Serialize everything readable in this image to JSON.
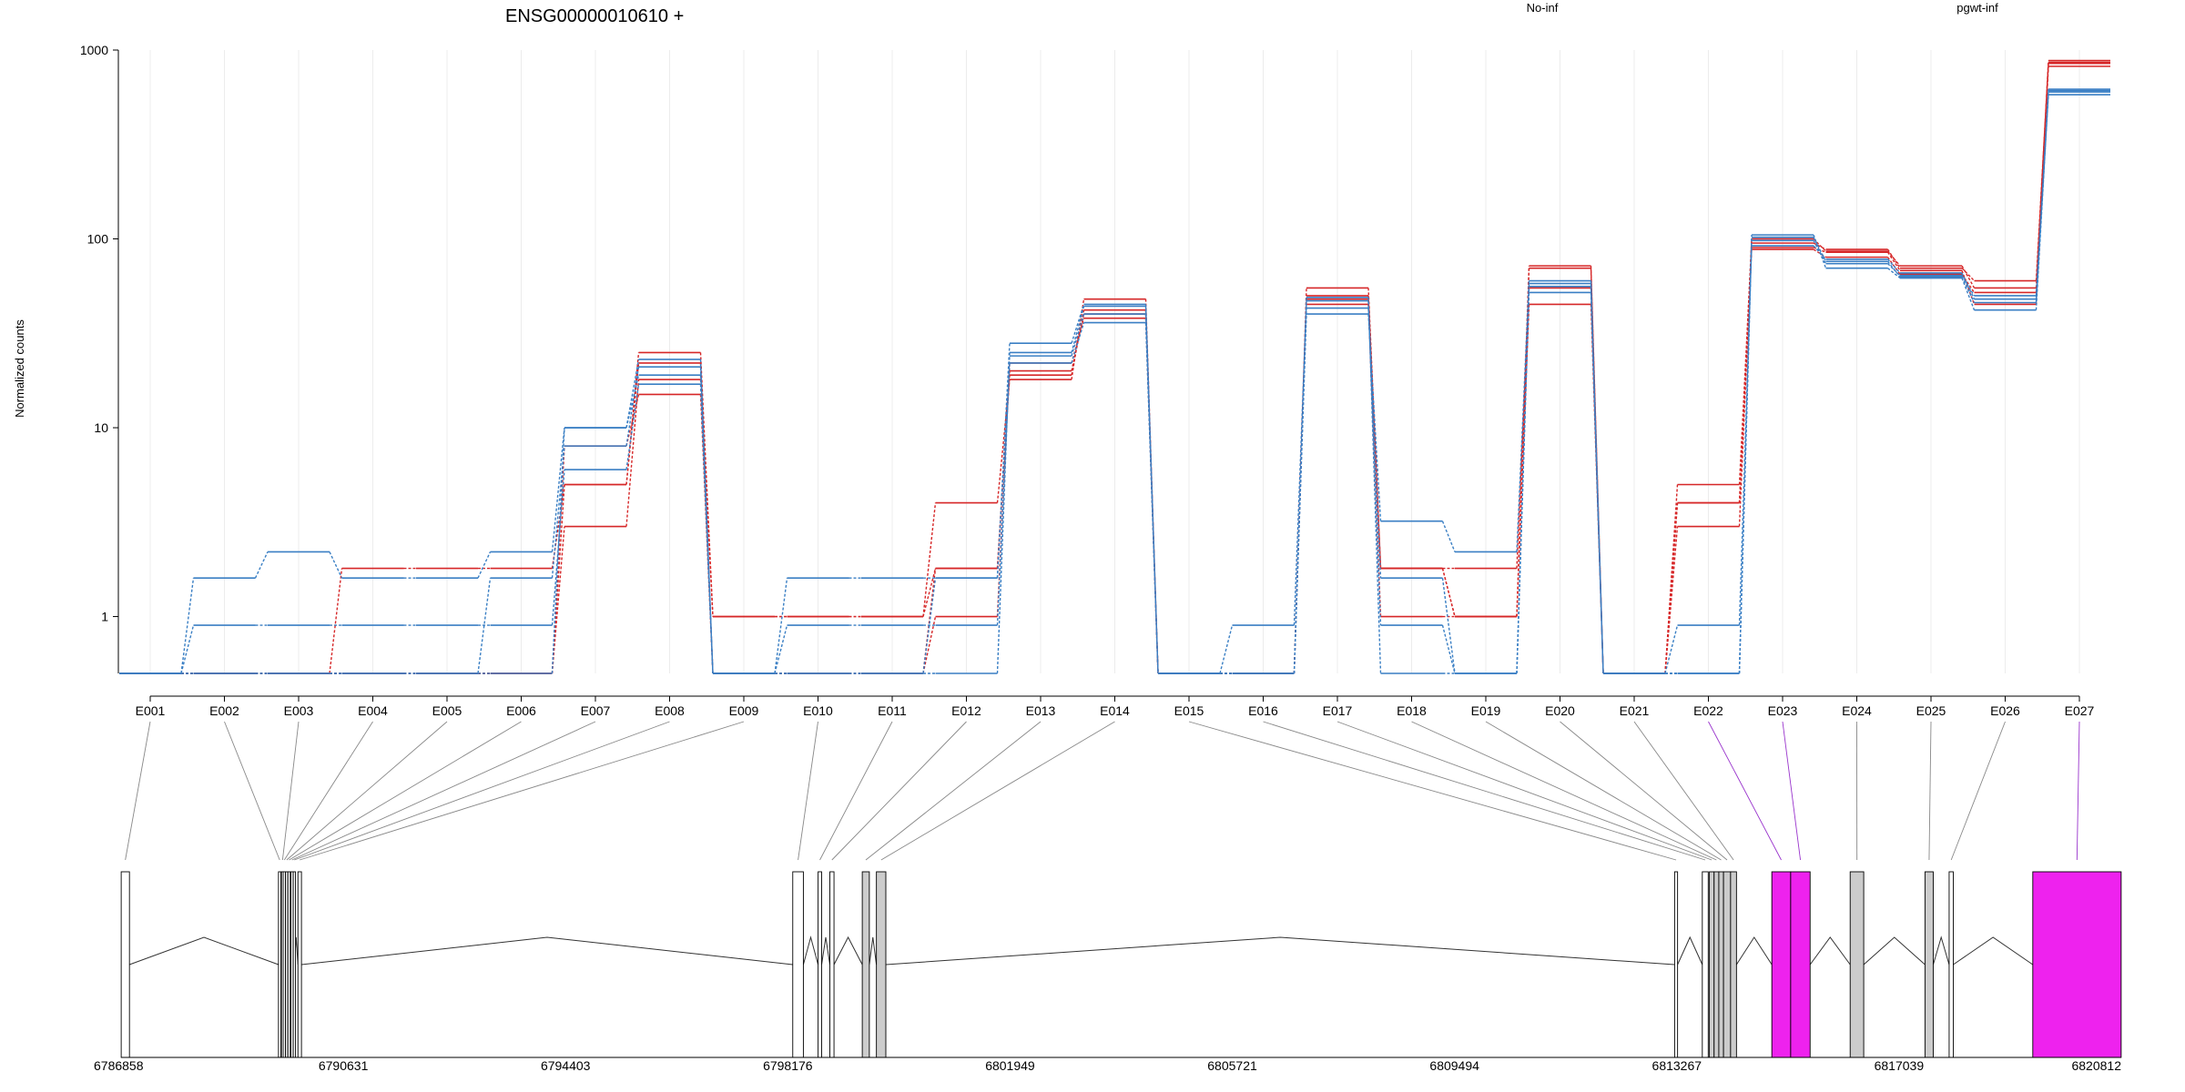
{
  "chart_data": {
    "type": "line",
    "title": "ENSG00000010610 +",
    "ylabel": "Normalized counts",
    "xlabel": "",
    "yscale": "log",
    "yticks": [
      "1",
      "10",
      "100",
      "1000"
    ],
    "ytick_values": [
      1,
      10,
      100,
      1000
    ],
    "ylim": [
      0.5,
      1000
    ],
    "grid": "vertical light lines at each exon",
    "legend": [
      {
        "name": "No-inf",
        "color": "#d62728",
        "position": "top-center"
      },
      {
        "name": "pgwt-inf",
        "color": "#3a7fc4",
        "position": "top-right"
      }
    ],
    "categories": [
      "E001",
      "E002",
      "E003",
      "E004",
      "E005",
      "E006",
      "E007",
      "E008",
      "E009",
      "E010",
      "E011",
      "E012",
      "E013",
      "E014",
      "E015",
      "E016",
      "E017",
      "E018",
      "E019",
      "E020",
      "E021",
      "E022",
      "E023",
      "E024",
      "E025",
      "E026",
      "E027"
    ],
    "series": [
      {
        "group": "No-inf",
        "color": "#d62728",
        "values": [
          0.5,
          0.5,
          0.5,
          1.8,
          1.8,
          1.8,
          5.0,
          25,
          1.0,
          1.0,
          1.0,
          4.0,
          18,
          48,
          0.5,
          0.5,
          55,
          1.8,
          1.0,
          72,
          0.5,
          5.0,
          95,
          88,
          70,
          60,
          850
        ]
      },
      {
        "group": "No-inf",
        "color": "#d62728",
        "values": [
          0.5,
          0.5,
          0.5,
          0.5,
          0.5,
          0.5,
          3.0,
          18,
          1.0,
          1.0,
          1.0,
          1.8,
          20,
          40,
          0.5,
          0.5,
          45,
          1.0,
          1.0,
          45,
          0.5,
          3.0,
          90,
          85,
          68,
          45,
          820
        ]
      },
      {
        "group": "No-inf",
        "color": "#d62728",
        "values": [
          0.5,
          0.5,
          0.5,
          0.5,
          0.5,
          0.5,
          8.0,
          15,
          0.5,
          0.5,
          0.5,
          1.0,
          22,
          38,
          0.5,
          0.5,
          48,
          1.8,
          1.8,
          55,
          0.5,
          4.0,
          88,
          80,
          65,
          52,
          880
        ]
      },
      {
        "group": "No-inf",
        "color": "#d62728",
        "values": [
          0.5,
          0.5,
          0.5,
          0.5,
          0.5,
          0.5,
          5.0,
          22,
          0.5,
          0.5,
          0.5,
          1.8,
          19,
          42,
          0.5,
          0.5,
          50,
          1.8,
          1.0,
          70,
          0.5,
          4.0,
          100,
          86,
          72,
          55,
          860
        ]
      },
      {
        "group": "pgwt-inf",
        "color": "#3a7fc4",
        "values": [
          0.5,
          1.6,
          2.2,
          1.6,
          1.6,
          2.2,
          10,
          23,
          0.5,
          1.6,
          1.6,
          1.6,
          28,
          45,
          0.5,
          0.5,
          40,
          3.2,
          2.2,
          60,
          0.5,
          0.5,
          105,
          70,
          62,
          42,
          600
        ]
      },
      {
        "group": "pgwt-inf",
        "color": "#3a7fc4",
        "values": [
          0.5,
          0.9,
          0.9,
          0.9,
          0.9,
          0.9,
          6.0,
          17,
          0.5,
          0.9,
          0.9,
          0.9,
          22,
          36,
          0.5,
          0.9,
          47,
          0.9,
          0.5,
          52,
          0.5,
          0.9,
          92,
          78,
          66,
          48,
          580
        ]
      },
      {
        "group": "pgwt-inf",
        "color": "#3a7fc4",
        "values": [
          0.5,
          0.5,
          0.5,
          0.5,
          0.5,
          1.6,
          8.0,
          21,
          0.5,
          0.5,
          0.5,
          0.5,
          25,
          44,
          0.5,
          0.5,
          43,
          1.6,
          0.5,
          56,
          0.5,
          0.5,
          98,
          74,
          64,
          50,
          620
        ]
      },
      {
        "group": "pgwt-inf",
        "color": "#3a7fc4",
        "values": [
          0.5,
          0.5,
          0.5,
          0.5,
          0.5,
          0.5,
          10,
          19,
          0.5,
          0.5,
          0.5,
          1.6,
          24,
          40,
          0.5,
          0.5,
          49,
          0.5,
          0.5,
          58,
          0.5,
          0.5,
          102,
          76,
          63,
          46,
          610
        ]
      }
    ],
    "gene_model": {
      "coordinate_labels": [
        "6786858",
        "6790631",
        "6794403",
        "6798176",
        "6801949",
        "6805721",
        "6809494",
        "6813267",
        "6817039",
        "6820812"
      ],
      "coordinate_values": [
        6786858,
        6790631,
        6794403,
        6798176,
        6801949,
        6805721,
        6809494,
        6813267,
        6817039,
        6820812
      ],
      "range": [
        6786858,
        6820812
      ],
      "exon_fill_colors": {
        "default": "#ffffff",
        "tested": "#cccccc",
        "significant": "#ee22ee"
      },
      "exons": [
        {
          "id": "E001",
          "start": 6786860,
          "end": 6787000,
          "fill": "default"
        },
        {
          "id": "E002",
          "start": 6789530,
          "end": 6789570,
          "fill": "default"
        },
        {
          "id": "E003",
          "start": 6789580,
          "end": 6789600,
          "fill": "default"
        },
        {
          "id": "E004",
          "start": 6789610,
          "end": 6789640,
          "fill": "default"
        },
        {
          "id": "E005",
          "start": 6789650,
          "end": 6789680,
          "fill": "default"
        },
        {
          "id": "E006",
          "start": 6789690,
          "end": 6789730,
          "fill": "default"
        },
        {
          "id": "E007",
          "start": 6789740,
          "end": 6789770,
          "fill": "default"
        },
        {
          "id": "E008",
          "start": 6789780,
          "end": 6789800,
          "fill": "default"
        },
        {
          "id": "E009",
          "start": 6789860,
          "end": 6789920,
          "fill": "default"
        },
        {
          "id": "E010",
          "start": 6798260,
          "end": 6798440,
          "fill": "default"
        },
        {
          "id": "E011",
          "start": 6798690,
          "end": 6798750,
          "fill": "default"
        },
        {
          "id": "E012",
          "start": 6798890,
          "end": 6798960,
          "fill": "default"
        },
        {
          "id": "E013",
          "start": 6799440,
          "end": 6799560,
          "fill": "tested"
        },
        {
          "id": "E014",
          "start": 6799680,
          "end": 6799840,
          "fill": "tested"
        },
        {
          "id": "E015",
          "start": 6813230,
          "end": 6813280,
          "fill": "default"
        },
        {
          "id": "E016",
          "start": 6813700,
          "end": 6813800,
          "fill": "default"
        },
        {
          "id": "E017",
          "start": 6813820,
          "end": 6813900,
          "fill": "tested"
        },
        {
          "id": "E018",
          "start": 6813900,
          "end": 6813980,
          "fill": "tested"
        },
        {
          "id": "E019",
          "start": 6813980,
          "end": 6814060,
          "fill": "tested"
        },
        {
          "id": "E020",
          "start": 6814060,
          "end": 6814180,
          "fill": "tested"
        },
        {
          "id": "E021",
          "start": 6814180,
          "end": 6814280,
          "fill": "tested"
        },
        {
          "id": "E022",
          "start": 6814880,
          "end": 6815200,
          "fill": "significant"
        },
        {
          "id": "E023",
          "start": 6815200,
          "end": 6815530,
          "fill": "significant"
        },
        {
          "id": "E024",
          "start": 6816210,
          "end": 6816440,
          "fill": "tested"
        },
        {
          "id": "E025",
          "start": 6817480,
          "end": 6817620,
          "fill": "tested"
        },
        {
          "id": "E026",
          "start": 6817890,
          "end": 6817960,
          "fill": "default"
        },
        {
          "id": "E027",
          "start": 6819310,
          "end": 6820810,
          "fill": "significant"
        }
      ]
    }
  }
}
